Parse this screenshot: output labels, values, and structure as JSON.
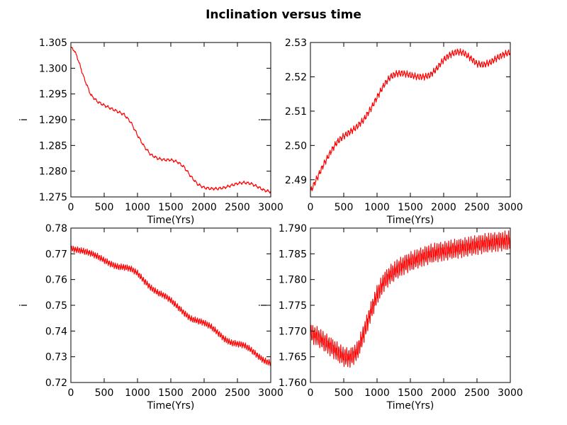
{
  "figure": {
    "title": "Inclination versus time"
  },
  "chart_data": [
    {
      "type": "line",
      "xlabel": "Time(Yrs)",
      "ylabel": "i",
      "xlim": [
        0,
        3000
      ],
      "ylim": [
        1.275,
        1.305
      ],
      "xticks": [
        0,
        500,
        1000,
        1500,
        2000,
        2500,
        3000
      ],
      "xtick_labels": [
        "0",
        "500",
        "1000",
        "1500",
        "2000",
        "2500",
        "3000"
      ],
      "yticks": [
        1.275,
        1.28,
        1.285,
        1.29,
        1.295,
        1.3,
        1.305
      ],
      "ytick_labels": [
        "1.275",
        "1.280",
        "1.285",
        "1.290",
        "1.295",
        "1.300",
        "1.305"
      ],
      "grid": false,
      "color": "#ff0000",
      "oscillation": {
        "amplitude": 0.0002,
        "period": 60
      },
      "series": [
        {
          "x": [
            0,
            50,
            100,
            200,
            300,
            400,
            500,
            600,
            700,
            800,
            900,
            1000,
            1100,
            1200,
            1300,
            1400,
            1500,
            1600,
            1700,
            1800,
            1900,
            2000,
            2100,
            2200,
            2300,
            2400,
            2500,
            2600,
            2700,
            2800,
            2900,
            3000
          ],
          "y": [
            1.304,
            1.3035,
            1.302,
            1.298,
            1.2948,
            1.2935,
            1.2928,
            1.2922,
            1.2916,
            1.291,
            1.2895,
            1.287,
            1.2848,
            1.2832,
            1.2825,
            1.2822,
            1.2822,
            1.2818,
            1.2808,
            1.279,
            1.2775,
            1.2768,
            1.2766,
            1.2766,
            1.2768,
            1.2772,
            1.2776,
            1.2778,
            1.2776,
            1.277,
            1.2763,
            1.276
          ]
        }
      ]
    },
    {
      "type": "line",
      "xlabel": "Time(Yrs)",
      "ylabel": "i",
      "xlim": [
        0,
        3000
      ],
      "ylim": [
        2.485,
        2.53
      ],
      "xticks": [
        0,
        500,
        1000,
        1500,
        2000,
        2500,
        3000
      ],
      "xtick_labels": [
        "0",
        "500",
        "1000",
        "1500",
        "2000",
        "2500",
        "3000"
      ],
      "yticks": [
        2.49,
        2.5,
        2.51,
        2.52,
        2.53
      ],
      "ytick_labels": [
        "2.49",
        "2.50",
        "2.51",
        "2.52",
        "2.53"
      ],
      "grid": false,
      "color": "#ff0000",
      "oscillation": {
        "amplitude": 0.0007,
        "period": 40
      },
      "series": [
        {
          "x": [
            0,
            100,
            200,
            300,
            400,
            500,
            600,
            700,
            800,
            900,
            1000,
            1100,
            1200,
            1300,
            1400,
            1500,
            1600,
            1700,
            1800,
            1900,
            2000,
            2100,
            2200,
            2300,
            2400,
            2500,
            2600,
            2700,
            2800,
            2900,
            3000
          ],
          "y": [
            2.4865,
            2.4905,
            2.4945,
            2.498,
            2.501,
            2.5027,
            2.504,
            2.5055,
            2.5075,
            2.5105,
            2.514,
            2.5175,
            2.52,
            2.521,
            2.521,
            2.5205,
            2.52,
            2.52,
            2.5205,
            2.5225,
            2.525,
            2.5265,
            2.5273,
            2.527,
            2.5255,
            2.5238,
            2.5235,
            2.5242,
            2.5255,
            2.5265,
            2.5272
          ]
        }
      ]
    },
    {
      "type": "line",
      "xlabel": "Time(Yrs)",
      "ylabel": "i",
      "xlim": [
        0,
        3000
      ],
      "ylim": [
        0.72,
        0.78
      ],
      "xticks": [
        0,
        500,
        1000,
        1500,
        2000,
        2500,
        3000
      ],
      "xtick_labels": [
        "0",
        "500",
        "1000",
        "1500",
        "2000",
        "2500",
        "3000"
      ],
      "yticks": [
        0.72,
        0.73,
        0.74,
        0.75,
        0.76,
        0.77,
        0.78
      ],
      "ytick_labels": [
        "0.72",
        "0.73",
        "0.74",
        "0.75",
        "0.76",
        "0.77",
        "0.78"
      ],
      "grid": false,
      "color": "#ff0000",
      "oscillation": {
        "amplitude": 0.0009,
        "period": 30
      },
      "series": [
        {
          "x": [
            0,
            100,
            200,
            300,
            400,
            500,
            600,
            700,
            800,
            900,
            1000,
            1100,
            1200,
            1300,
            1400,
            1500,
            1600,
            1700,
            1800,
            1900,
            2000,
            2100,
            2200,
            2300,
            2400,
            2500,
            2600,
            2700,
            2800,
            2900,
            3000
          ],
          "y": [
            0.772,
            0.7715,
            0.771,
            0.7702,
            0.769,
            0.7675,
            0.766,
            0.765,
            0.7648,
            0.7642,
            0.7625,
            0.7595,
            0.7568,
            0.755,
            0.7538,
            0.752,
            0.7495,
            0.747,
            0.7448,
            0.744,
            0.7432,
            0.7418,
            0.7395,
            0.737,
            0.7355,
            0.735,
            0.7345,
            0.7328,
            0.7305,
            0.7285,
            0.7275
          ]
        }
      ]
    },
    {
      "type": "line",
      "xlabel": "Time(Yrs)",
      "ylabel": "i",
      "xlim": [
        0,
        3000
      ],
      "ylim": [
        1.76,
        1.79
      ],
      "xticks": [
        0,
        500,
        1000,
        1500,
        2000,
        2500,
        3000
      ],
      "xtick_labels": [
        "0",
        "500",
        "1000",
        "1500",
        "2000",
        "2500",
        "3000"
      ],
      "yticks": [
        1.76,
        1.765,
        1.77,
        1.775,
        1.78,
        1.785,
        1.79
      ],
      "ytick_labels": [
        "1.760",
        "1.765",
        "1.770",
        "1.775",
        "1.780",
        "1.785",
        "1.790"
      ],
      "grid": false,
      "color": "#ff0000",
      "oscillation": {
        "amplitude": 0.0014,
        "period": 30
      },
      "series": [
        {
          "x": [
            0,
            100,
            200,
            300,
            400,
            500,
            600,
            700,
            800,
            900,
            1000,
            1100,
            1200,
            1300,
            1400,
            1500,
            1600,
            1700,
            1800,
            1900,
            2000,
            2100,
            2200,
            2300,
            2400,
            2500,
            2600,
            2700,
            2800,
            2900,
            3000
          ],
          "y": [
            1.7695,
            1.769,
            1.768,
            1.767,
            1.766,
            1.765,
            1.7648,
            1.766,
            1.7695,
            1.7735,
            1.777,
            1.7795,
            1.781,
            1.782,
            1.7828,
            1.7835,
            1.784,
            1.7845,
            1.785,
            1.7853,
            1.7855,
            1.7858,
            1.786,
            1.7862,
            1.7865,
            1.7867,
            1.787,
            1.7872,
            1.7873,
            1.7875,
            1.7876
          ]
        }
      ]
    }
  ]
}
